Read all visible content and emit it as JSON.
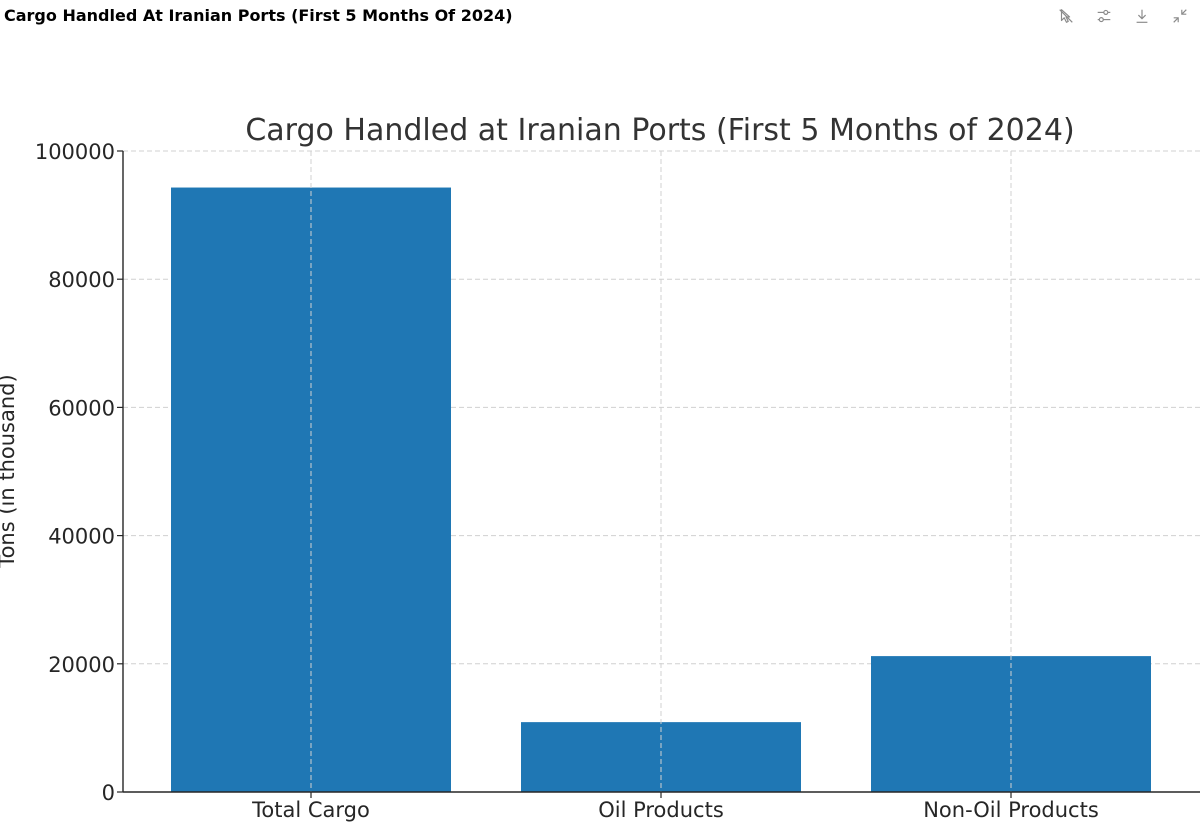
{
  "header": {
    "title": "Cargo Handled At Iranian Ports (First 5 Months Of 2024)",
    "toolbar": [
      {
        "icon": "cursor-off-icon"
      },
      {
        "icon": "sliders-icon"
      },
      {
        "icon": "download-icon"
      },
      {
        "icon": "collapse-icon"
      }
    ]
  },
  "chart_data": {
    "type": "bar",
    "title": "Cargo Handled at Iranian Ports (First 5 Months of 2024)",
    "xlabel": "",
    "ylabel": "Tons (in thousand)",
    "categories": [
      "Total Cargo",
      "Oil Products",
      "Non-Oil Products"
    ],
    "values": [
      94300,
      10900,
      21200
    ],
    "ylim": [
      0,
      100000
    ],
    "yticks": [
      0,
      20000,
      40000,
      60000,
      80000,
      100000
    ],
    "bar_color": "#1f77b4",
    "grid": true,
    "grid_style": "dashed",
    "legend": "none"
  }
}
